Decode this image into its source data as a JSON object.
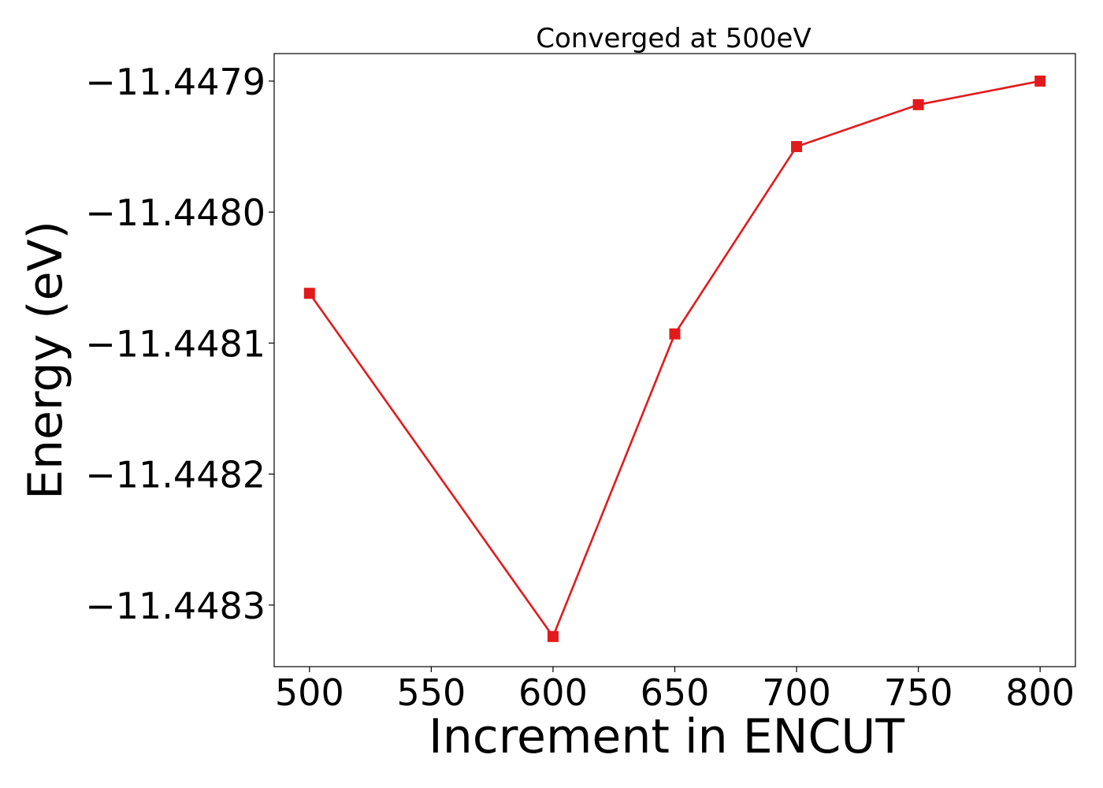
{
  "chart_data": {
    "type": "line",
    "title": "Converged at 500eV",
    "xlabel": "Increment in ENCUT",
    "ylabel": "Energy (eV)",
    "x": [
      500,
      600,
      650,
      700,
      750,
      800
    ],
    "series": [
      {
        "values": [
          -11.448062,
          -11.448324,
          -11.448093,
          -11.44795,
          -11.447918,
          -11.4479
        ],
        "color": "#e31a1c",
        "marker": "square"
      }
    ],
    "xlim": [
      485.5,
      814.5
    ],
    "ylim": [
      -11.448347,
      -11.447879
    ],
    "xticks": [
      500,
      550,
      600,
      650,
      700,
      750,
      800
    ],
    "yticks": [
      -11.4483,
      -11.4482,
      -11.4481,
      -11.448,
      -11.4479
    ],
    "xtick_labels": [
      "500",
      "550",
      "600",
      "650",
      "700",
      "750",
      "800"
    ],
    "ytick_labels": [
      "−11.4483",
      "−11.4482",
      "−11.4481",
      "−11.4480",
      "−11.4479"
    ],
    "grid": false,
    "legend": false
  }
}
